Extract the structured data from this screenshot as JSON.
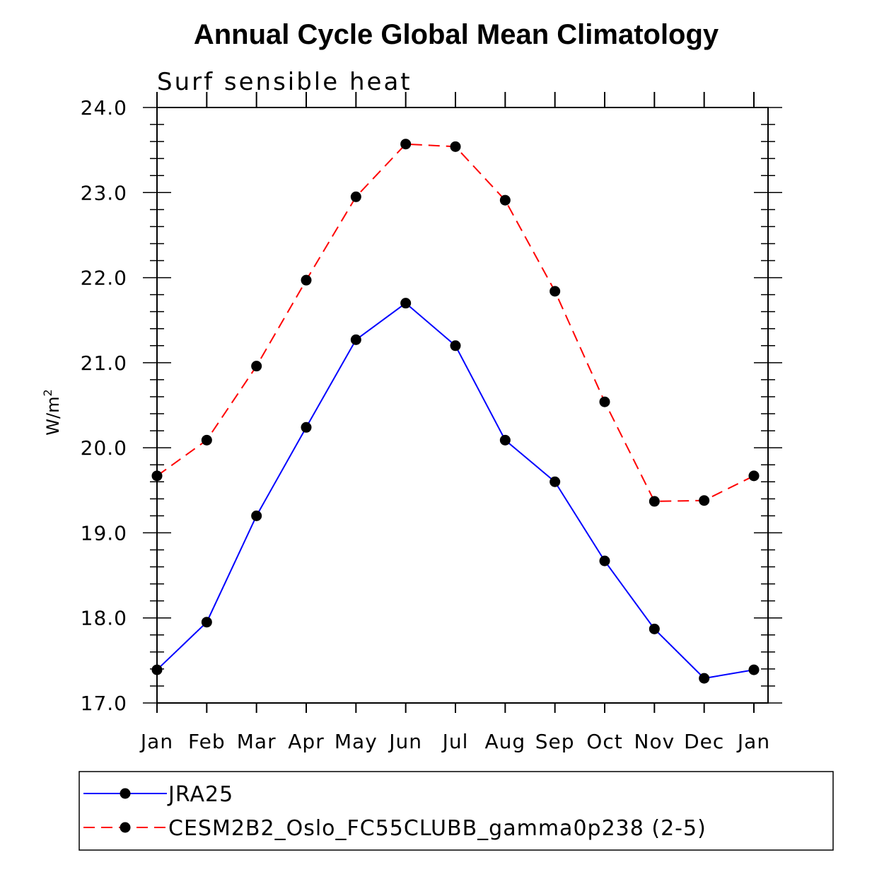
{
  "chart_data": {
    "type": "line",
    "title": "Annual Cycle Global Mean Climatology",
    "subtitle": "Surf sensible heat",
    "xlabel": "",
    "ylabel": "W/m",
    "ylabel_superscript": "2",
    "ylim": [
      17.0,
      24.0
    ],
    "ytick_labels": [
      "17.0",
      "18.0",
      "19.0",
      "20.0",
      "21.0",
      "22.0",
      "23.0",
      "24.0"
    ],
    "categories": [
      "Jan",
      "Feb",
      "Mar",
      "Apr",
      "May",
      "Jun",
      "Jul",
      "Aug",
      "Sep",
      "Oct",
      "Nov",
      "Dec",
      "Jan"
    ],
    "series": [
      {
        "name": "JRA25",
        "color": "#0000ff",
        "style": "solid",
        "values": [
          17.39,
          17.95,
          19.2,
          20.24,
          21.27,
          21.7,
          21.2,
          20.09,
          19.6,
          18.67,
          17.87,
          17.29,
          17.39
        ]
      },
      {
        "name": "CESM2B2_Oslo_FC55CLUBB_gamma0p238 (2-5)",
        "color": "#ff0000",
        "style": "dashed",
        "values": [
          19.67,
          20.09,
          20.96,
          21.97,
          22.95,
          23.57,
          23.54,
          22.91,
          21.84,
          20.54,
          19.37,
          19.38,
          19.67
        ]
      }
    ],
    "legend_position": "bottom"
  }
}
